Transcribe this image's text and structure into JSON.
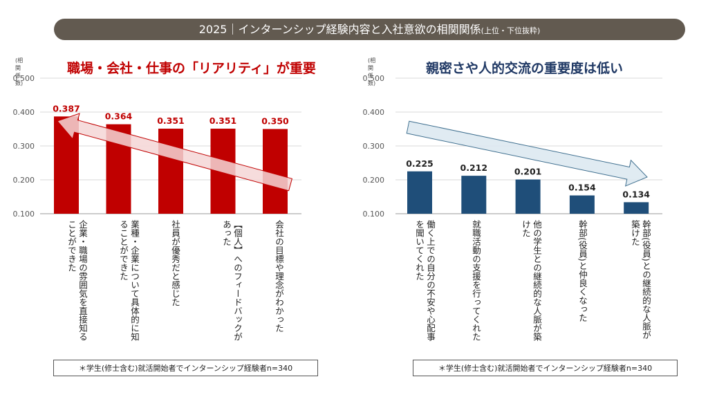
{
  "banner": {
    "main": "2025｜インターンシップ経験内容と入社意欲の相関関係",
    "sub": "(上位・下位抜粋)"
  },
  "left": {
    "title": "職場・会社・仕事の「リアリティ」が重要",
    "yunit": "(相関係数)",
    "note": "＊学生(修士含む)就活開始者でインターンシップ経験者n=340",
    "categories": [
      "企業・職場の雰囲気を直接知る\nことができた",
      "業種・企業について具体的に知\nることができた",
      "社員が優秀だと感じた",
      "【個人】へのフィードバックが\nあった",
      "会社の目標や理念がわかった"
    ]
  },
  "right": {
    "title": "親密さや人的交流の重要度は低い",
    "yunit": "(相関係数)",
    "note": "＊学生(修士含む)就活開始者でインターンシップ経験者n=340",
    "categories": [
      "働く上での自分の不安や心配事\nを聞いてくれた",
      "就職活動の支援を行ってくれた",
      "他の学生との継続的な人脈が築\nけた",
      "幹部(役員)と仲良くなった",
      "幹部(役員)との継続的な人脈が\n築けた"
    ]
  },
  "colors": {
    "left_bar": "#c00000",
    "right_bar": "#1f4e79",
    "banner": "#625a50"
  },
  "chart_data": [
    {
      "type": "bar",
      "title": "職場・会社・仕事の「リアリティ」が重要",
      "ylabel": "(相関係数)",
      "ylim": [
        0.1,
        0.5
      ],
      "yticks": [
        "0.100",
        "0.200",
        "0.300",
        "0.400",
        "0.500"
      ],
      "values": [
        0.387,
        0.364,
        0.351,
        0.351,
        0.35
      ],
      "value_labels": [
        "0.387",
        "0.364",
        "0.351",
        "0.351",
        "0.350"
      ],
      "grid": true
    },
    {
      "type": "bar",
      "title": "親密さや人的交流の重要度は低い",
      "ylabel": "(相関係数)",
      "ylim": [
        0.1,
        0.5
      ],
      "yticks": [
        "0.100",
        "0.200",
        "0.300",
        "0.400",
        "0.500"
      ],
      "values": [
        0.225,
        0.212,
        0.201,
        0.154,
        0.134
      ],
      "value_labels": [
        "0.225",
        "0.212",
        "0.201",
        "0.154",
        "0.134"
      ],
      "grid": true
    }
  ]
}
